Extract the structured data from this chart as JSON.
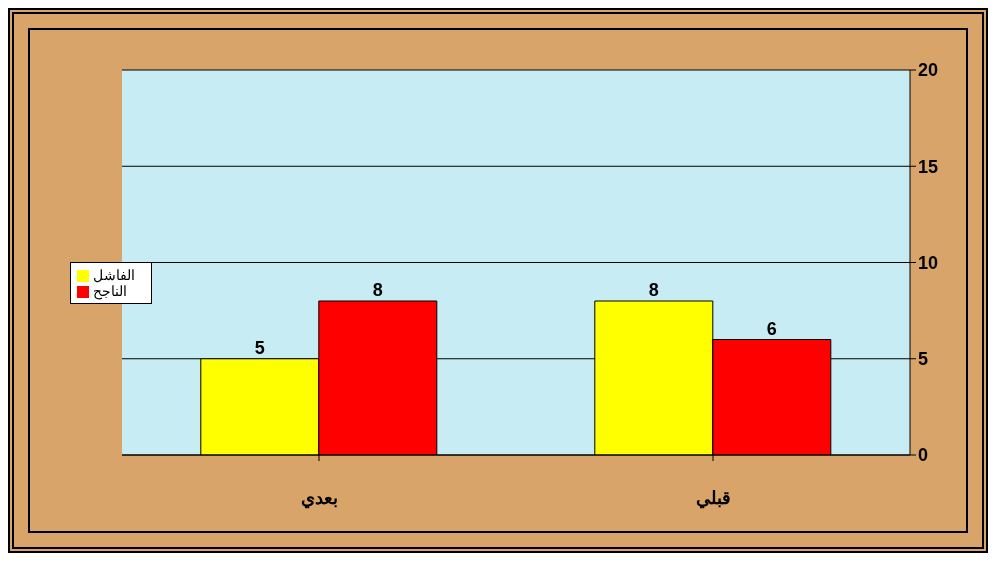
{
  "chart_data": {
    "type": "bar",
    "categories": [
      "بعدي",
      "قبلي"
    ],
    "series": [
      {
        "name": "الفاشل",
        "color": "#ffff00",
        "values": [
          5,
          8
        ]
      },
      {
        "name": "الناجح",
        "color": "#ff0000",
        "values": [
          8,
          6
        ]
      }
    ],
    "ylim": [
      0,
      20
    ],
    "yticks": [
      0,
      5,
      10,
      15,
      20
    ],
    "grid": "y",
    "legend": "left",
    "data_labels": true
  }
}
